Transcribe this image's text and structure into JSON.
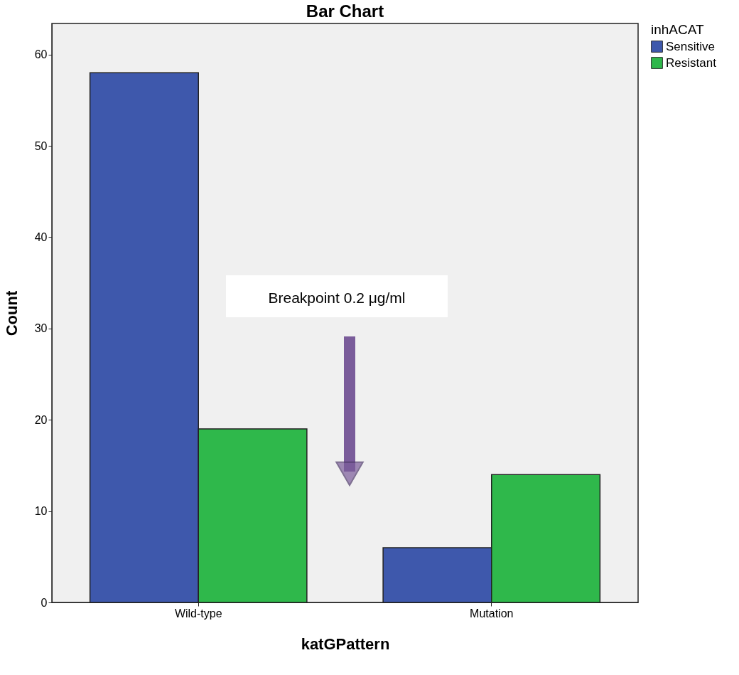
{
  "chart_data": {
    "type": "bar",
    "title": "Bar Chart",
    "xlabel": "katGPattern",
    "ylabel": "Count",
    "legend_title": "inhACAT",
    "categories": [
      "Wild-type",
      "Mutation"
    ],
    "series": [
      {
        "name": "Sensitive",
        "color": "#3e58ac",
        "values": [
          58,
          6
        ]
      },
      {
        "name": "Resistant",
        "color": "#2fb84b",
        "values": [
          19,
          14
        ]
      }
    ],
    "ylim": [
      0,
      63.4
    ],
    "yticks": [
      0,
      10,
      20,
      30,
      40,
      50,
      60
    ],
    "grid": false,
    "legend": "top right",
    "annotations": [
      "Breakpoint 0.2 μg/ml"
    ]
  }
}
